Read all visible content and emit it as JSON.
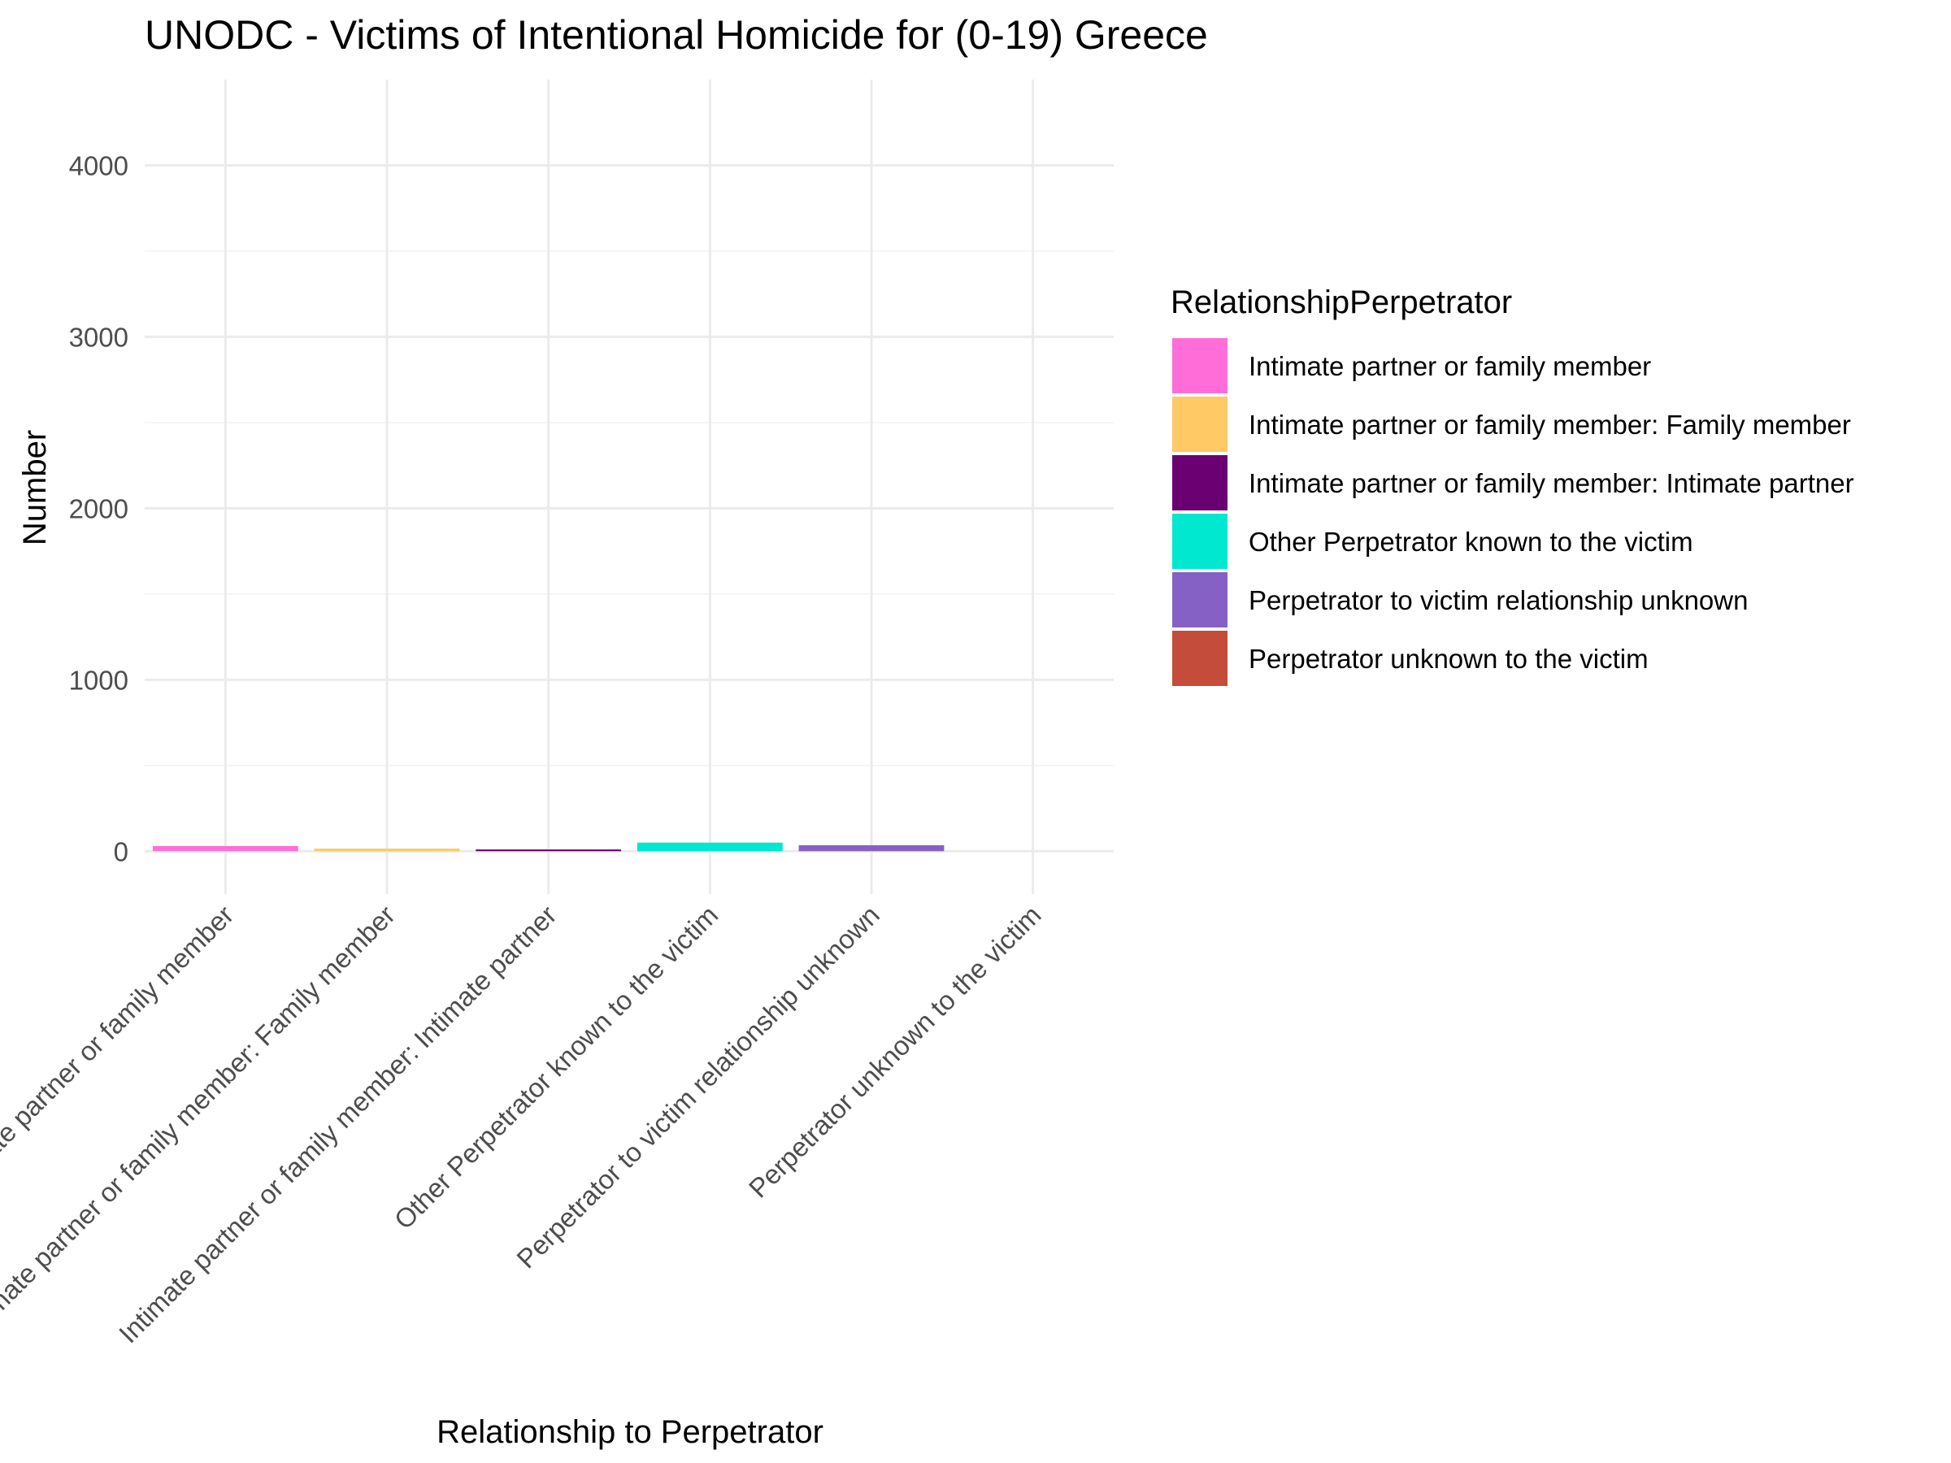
{
  "chart_data": {
    "type": "bar",
    "title": "UNODC - Victims of Intentional Homicide for (0-19) Greece",
    "xlabel": "Relationship to Perpetrator",
    "ylabel": "Number",
    "ylim": [
      -250,
      4500
    ],
    "yticks": [
      0,
      1000,
      2000,
      3000,
      4000
    ],
    "yticks_labels": [
      "0",
      "1000",
      "2000",
      "3000",
      "4000"
    ],
    "categories": [
      "Intimate partner or family member",
      "Intimate partner or family member: Family member",
      "Intimate partner or family member: Intimate partner",
      "Other Perpetrator known to the victim",
      "Perpetrator to victim relationship unknown",
      "Perpetrator unknown to the victim"
    ],
    "values": [
      30,
      15,
      10,
      50,
      35,
      0
    ],
    "colors": [
      "#ff6ed8",
      "#ffc966",
      "#6a0072",
      "#00e8d0",
      "#8661c5",
      "#c44c3a"
    ],
    "grid": true,
    "legend": {
      "title": "RelationshipPerpetrator",
      "position": "right",
      "entries": [
        "Intimate partner or family member",
        "Intimate partner or family member: Family member",
        "Intimate partner or family member: Intimate partner",
        "Other Perpetrator known to the victim",
        "Perpetrator to victim relationship unknown",
        "Perpetrator unknown to the victim"
      ]
    }
  }
}
